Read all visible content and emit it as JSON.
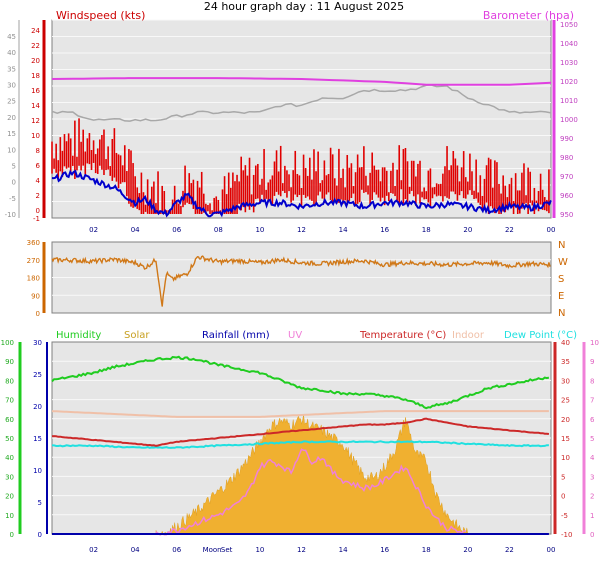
{
  "title": "24 hour graph day : 11 August 2025",
  "colors": {
    "windspeed": "#e00000",
    "windavg": "#0000cc",
    "gust_line": "#a8a8a8",
    "barometer": "#e040e0",
    "winddir": "#d07818",
    "humidity": "#20cc20",
    "solar": "#f0b030",
    "rain": "#0000aa",
    "uv": "#f080d8",
    "temperature": "#cc2828",
    "indoor": "#f0c0a8",
    "dewpoint": "#20e0e0",
    "plot_bg": "#e6e6e6",
    "grid": "#f8f8f8"
  },
  "chart_data": [
    {
      "type": "line",
      "x_label_ticks": [
        "02",
        "04",
        "06",
        "08",
        "10",
        "12",
        "14",
        "16",
        "18",
        "20",
        "22",
        "00"
      ],
      "left_axes": [
        {
          "name": "Windspeed (kts)",
          "ticks": [
            "-1",
            "0",
            "2",
            "4",
            "6",
            "8",
            "10",
            "12",
            "14",
            "16",
            "18",
            "20",
            "22",
            "24"
          ]
        },
        {
          "name": "",
          "ticks": [
            "-10",
            "-5",
            "0",
            "5",
            "10",
            "15",
            "20",
            "25",
            "30",
            "35",
            "40",
            "45"
          ]
        }
      ],
      "right_axis": {
        "name": "Barometer (hpa)",
        "ticks": [
          "950",
          "960",
          "970",
          "980",
          "990",
          "1000",
          "1010",
          "1020",
          "1030",
          "1040",
          "1050"
        ],
        "ylim": [
          948,
          1052
        ]
      },
      "series": [
        {
          "name": "Windspeed (kts)",
          "key": "windspeed",
          "kind": "gust_bars",
          "x": [
            0,
            1,
            2,
            3,
            3.5,
            4,
            5,
            5.5,
            6,
            6.3,
            7,
            7.5,
            8,
            9,
            10,
            11,
            12,
            13,
            14,
            15,
            16,
            17,
            18,
            19,
            20,
            21,
            22,
            23,
            24
          ],
          "y": [
            8,
            8,
            9,
            7,
            6,
            3,
            2,
            0,
            0,
            3,
            3,
            2,
            0,
            3,
            4,
            5,
            4,
            5,
            4,
            5,
            4,
            5,
            4,
            5,
            5,
            3,
            3,
            3,
            3
          ]
        },
        {
          "name": "Wind average",
          "key": "windavg",
          "kind": "line",
          "x": [
            0,
            1,
            2,
            3,
            3.5,
            4,
            4.5,
            5,
            5.5,
            6,
            6.5,
            7,
            7.5,
            8,
            9,
            10,
            11,
            12,
            13,
            14,
            15,
            16,
            17,
            18,
            19,
            20,
            21,
            22,
            23,
            24
          ],
          "y": [
            4,
            5,
            4,
            3,
            2,
            1,
            1.5,
            0,
            -0.5,
            1,
            2,
            0.5,
            -0.5,
            -0.5,
            0.5,
            1,
            1,
            0.5,
            1,
            1,
            0.5,
            1,
            1,
            0.5,
            0.8,
            0.5,
            0,
            0.5,
            0.3,
            1
          ]
        },
        {
          "name": "Gust trace",
          "key": "gust_line",
          "kind": "step",
          "x": [
            0,
            1,
            2,
            3,
            4,
            5,
            6,
            7,
            8,
            9,
            10,
            11,
            12,
            13,
            14,
            15,
            16,
            17,
            18,
            19,
            20,
            21,
            22,
            23,
            24
          ],
          "y": [
            13,
            13,
            12,
            12,
            12,
            12,
            12.5,
            13,
            13,
            13,
            13,
            14,
            14,
            15,
            15,
            16,
            16,
            16,
            16.5,
            16.5,
            15,
            14,
            13,
            13,
            13
          ]
        },
        {
          "name": "Barometer (hpa)",
          "key": "barometer",
          "kind": "line",
          "axis": "right",
          "x": [
            0,
            4,
            8,
            12,
            16,
            18,
            20,
            22,
            24
          ],
          "y": [
            1021,
            1021.5,
            1021.5,
            1021,
            1019.5,
            1018,
            1018,
            1018,
            1019
          ]
        }
      ]
    },
    {
      "type": "line",
      "name": "Wind direction",
      "direction_labels": [
        "N",
        "W",
        "S",
        "E",
        "N"
      ],
      "left_ticks": [
        "0",
        "90",
        "180",
        "270",
        "360"
      ],
      "ylim": [
        0,
        360
      ],
      "series": [
        {
          "name": "Wind direction",
          "key": "winddir",
          "kind": "scatterline",
          "x": [
            0,
            1,
            2,
            3,
            4,
            4.5,
            5,
            5.3,
            5.5,
            5.8,
            6,
            6.5,
            7,
            8,
            9,
            10,
            11,
            12,
            13,
            14,
            15,
            16,
            17,
            18,
            19,
            20,
            21,
            22,
            23,
            24
          ],
          "y": [
            270,
            268,
            262,
            272,
            255,
            230,
            270,
            40,
            200,
            170,
            180,
            200,
            285,
            260,
            265,
            255,
            270,
            255,
            250,
            260,
            265,
            245,
            255,
            250,
            245,
            250,
            255,
            240,
            250,
            245
          ]
        }
      ]
    },
    {
      "type": "line",
      "legend": [
        "Humidity",
        "Solar",
        "Rainfall (mm)",
        "UV",
        "Temperature (°C)",
        "Indoor",
        "Dew Point (°C)"
      ],
      "x_label_ticks": [
        "02",
        "04",
        "06",
        "Moon",
        "Set",
        "10",
        "12",
        "14",
        "16",
        "18",
        "20",
        "22",
        "00"
      ],
      "left_axes": [
        {
          "name": "Humidity",
          "ticks": [
            "0",
            "10",
            "20",
            "30",
            "40",
            "50",
            "60",
            "70",
            "80",
            "90",
            "100"
          ]
        },
        {
          "name": "Rainfall",
          "ticks": [
            "0",
            "5",
            "10",
            "15",
            "20",
            "25",
            "30"
          ]
        }
      ],
      "right_axes": [
        {
          "name": "Temperature",
          "ticks": [
            "-10",
            "-5",
            "0",
            "5",
            "10",
            "15",
            "20",
            "25",
            "30",
            "35",
            "40"
          ]
        },
        {
          "name": "UV",
          "ticks": [
            "0",
            "1",
            "2",
            "3",
            "4",
            "5",
            "6",
            "7",
            "8",
            "9",
            "10"
          ]
        }
      ],
      "series": [
        {
          "name": "Humidity",
          "key": "humidity",
          "unit_range": [
            0,
            100
          ],
          "x": [
            0,
            1,
            2,
            3,
            4,
            5,
            6,
            7,
            8,
            9,
            10,
            11,
            12,
            13,
            14,
            15,
            16,
            17,
            17.5,
            18,
            18.5,
            19,
            20,
            21,
            22,
            23,
            24
          ],
          "y": [
            80,
            82,
            84,
            87,
            89,
            91,
            92,
            91,
            88,
            86,
            84,
            80,
            76,
            75,
            73,
            73,
            72,
            70,
            68,
            66,
            67,
            68,
            72,
            76,
            78,
            80,
            82
          ]
        },
        {
          "name": "Solar",
          "key": "solar",
          "unit_range": [
            0,
            1000
          ],
          "x": [
            5,
            5.5,
            6,
            6.5,
            7,
            7.5,
            8,
            8.5,
            9,
            9.5,
            10,
            10.5,
            11,
            11.5,
            12,
            12.5,
            13,
            13.5,
            14,
            14.5,
            15,
            15.5,
            16,
            16.5,
            17,
            17.5,
            18,
            18.5,
            19,
            19.5,
            20
          ],
          "y": [
            0,
            10,
            40,
            80,
            120,
            170,
            220,
            270,
            330,
            400,
            480,
            560,
            590,
            570,
            600,
            560,
            540,
            500,
            470,
            380,
            300,
            290,
            350,
            440,
            600,
            420,
            380,
            200,
            100,
            40,
            0
          ]
        },
        {
          "name": "Rainfall (mm)",
          "key": "rain",
          "unit_range": [
            0,
            30
          ],
          "x": [
            0,
            24
          ],
          "y": [
            0,
            0
          ]
        },
        {
          "name": "UV",
          "key": "uv",
          "unit_range": [
            0,
            10
          ],
          "x": [
            5,
            6,
            7,
            8,
            9,
            9.5,
            10,
            10.5,
            11,
            11.5,
            12,
            12.5,
            13,
            13.5,
            14,
            14.5,
            15,
            15.5,
            16,
            16.5,
            17,
            17.5,
            18,
            18.5,
            19,
            20
          ],
          "y": [
            0,
            0.2,
            0.6,
            1,
            1.6,
            2.3,
            3.5,
            3.8,
            3.6,
            3.2,
            4.5,
            3.8,
            4,
            3.2,
            2.8,
            2.6,
            2.4,
            2.5,
            2.8,
            3.2,
            3.5,
            2.5,
            1.5,
            0.8,
            0.3,
            0
          ]
        },
        {
          "name": "Temperature (°C)",
          "key": "temperature",
          "unit_range": [
            -10,
            40
          ],
          "x": [
            0,
            1,
            2,
            3,
            4,
            5,
            6,
            7,
            8,
            9,
            10,
            11,
            12,
            13,
            14,
            15,
            16,
            17,
            18,
            19,
            20,
            21,
            22,
            23,
            24
          ],
          "y": [
            15.5,
            15,
            14.5,
            14,
            13.5,
            13,
            14,
            14.5,
            15,
            15.5,
            16,
            16.5,
            17,
            17.5,
            18,
            18.5,
            18.5,
            19,
            20,
            19,
            18,
            17.5,
            17,
            16.5,
            16
          ]
        },
        {
          "name": "Indoor",
          "key": "indoor",
          "unit_range": [
            -10,
            40
          ],
          "x": [
            0,
            2,
            4,
            6,
            8,
            10,
            12,
            14,
            16,
            18,
            20,
            22,
            24
          ],
          "y": [
            22,
            21.5,
            21,
            20.5,
            20.5,
            20.5,
            21,
            21.5,
            22,
            22,
            22,
            22,
            22
          ]
        },
        {
          "name": "Dew Point (°C)",
          "key": "dewpoint",
          "unit_range": [
            -10,
            40
          ],
          "x": [
            0,
            2,
            4,
            6,
            8,
            10,
            12,
            14,
            16,
            18,
            20,
            22,
            24
          ],
          "y": [
            13,
            13,
            12.5,
            12.5,
            13,
            13.5,
            14,
            14,
            14,
            14,
            13.5,
            13,
            13
          ]
        }
      ]
    }
  ]
}
